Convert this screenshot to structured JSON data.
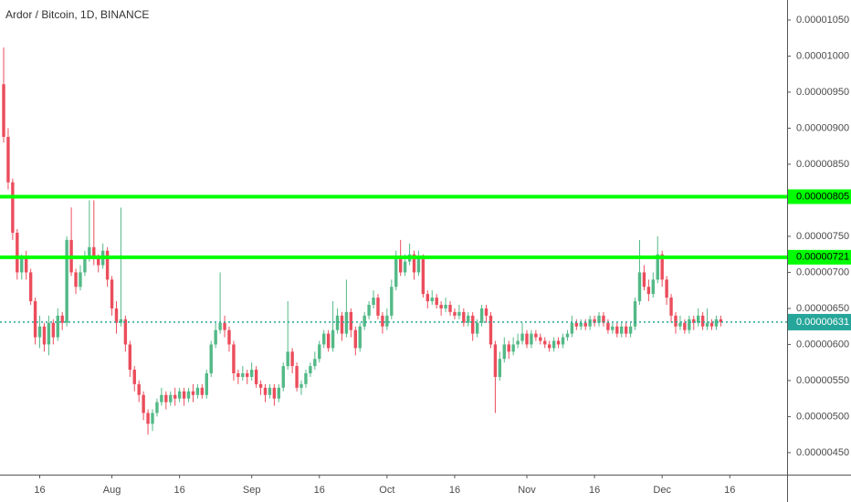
{
  "chart_data": {
    "type": "candlestick",
    "title": "Ardor / Bitcoin, 1D, BINANCE",
    "up_color": "#53b987",
    "down_color": "#eb4d5c",
    "xlim": [
      -0.81,
      173.7
    ],
    "ylim": [
      4.195e-06,
      1.0778e-05
    ],
    "xticks": [
      {
        "value": 8,
        "label": "16"
      },
      {
        "value": 24,
        "label": "Aug"
      },
      {
        "value": 39,
        "label": "16"
      },
      {
        "value": 55,
        "label": "Sep"
      },
      {
        "value": 70,
        "label": "16"
      },
      {
        "value": 85,
        "label": "Oct"
      },
      {
        "value": 100,
        "label": "16"
      },
      {
        "value": 116,
        "label": "Nov"
      },
      {
        "value": 131,
        "label": "16"
      },
      {
        "value": 146,
        "label": "Dec"
      },
      {
        "value": 161,
        "label": "16"
      }
    ],
    "yticks": [
      {
        "value": 1.05e-05,
        "label": "0.00001050"
      },
      {
        "value": 1e-05,
        "label": "0.00001000"
      },
      {
        "value": 9.5e-06,
        "label": "0.00000950"
      },
      {
        "value": 9e-06,
        "label": "0.00000900"
      },
      {
        "value": 8.5e-06,
        "label": "0.00000850"
      },
      {
        "value": 7.5e-06,
        "label": "0.00000750"
      },
      {
        "value": 7e-06,
        "label": "0.00000700"
      },
      {
        "value": 6.5e-06,
        "label": "0.00000650"
      },
      {
        "value": 6e-06,
        "label": "0.00000600"
      },
      {
        "value": 5.5e-06,
        "label": "0.00000550"
      },
      {
        "value": 5e-06,
        "label": "0.00000500"
      },
      {
        "value": 4.5e-06,
        "label": "0.00000450"
      }
    ],
    "hlines": [
      {
        "value": 8.05e-06,
        "label": "0.00000805",
        "color": "#00ff00"
      },
      {
        "value": 7.21e-06,
        "label": "0.00000721",
        "color": "#00ff00"
      }
    ],
    "last_price": {
      "value": 6.31e-06,
      "label": "0.00000631",
      "color": "#26a69a"
    },
    "open": [
      9.61e-06,
      8.88e-06,
      8.25e-06,
      7.55e-06,
      7e-06,
      7.2e-06,
      7e-06,
      6.6e-06,
      6.1e-06,
      6.25e-06,
      6e-06,
      6.3e-06,
      6.1e-06,
      6.4e-06,
      6.3e-06,
      7.45e-06,
      7e-06,
      6.8e-06,
      7e-06,
      7.2e-06,
      7.35e-06,
      7.2e-06,
      7.1e-06,
      7.3e-06,
      6.9e-06,
      6.5e-06,
      6.3e-06,
      6.35e-06,
      6e-06,
      5.65e-06,
      5.45e-06,
      5.3e-06,
      5.05e-06,
      4.9e-06,
      5.05e-06,
      5.2e-06,
      5.3e-06,
      5.2e-06,
      5.3e-06,
      5.25e-06,
      5.35e-06,
      5.25e-06,
      5.35e-06,
      5.3e-06,
      5.4e-06,
      5.3e-06,
      5.6e-06,
      6e-06,
      6.2e-06,
      6.3e-06,
      6.2e-06,
      6e-06,
      5.6e-06,
      5.55e-06,
      5.6e-06,
      5.55e-06,
      5.65e-06,
      5.45e-06,
      5.4e-06,
      5.3e-06,
      5.4e-06,
      5.25e-06,
      5.4e-06,
      5.7e-06,
      5.9e-06,
      5.7e-06,
      5.4e-06,
      5.45e-06,
      5.6e-06,
      5.7e-06,
      5.8e-06,
      6e-06,
      6.15e-06,
      5.95e-06,
      6.2e-06,
      6.4e-06,
      6.15e-06,
      6.45e-06,
      6.2e-06,
      5.95e-06,
      6.25e-06,
      6.4e-06,
      6.55e-06,
      6.65e-06,
      6.4e-06,
      6.25e-06,
      6.4e-06,
      6.8e-06,
      7.2e-06,
      7e-06,
      7.15e-06,
      7.25e-06,
      7e-06,
      7.2e-06,
      6.7e-06,
      6.6e-06,
      6.65e-06,
      6.55e-06,
      6.5e-06,
      6.55e-06,
      6.45e-06,
      6.4e-06,
      6.45e-06,
      6.3e-06,
      6.4e-06,
      6.15e-06,
      6.3e-06,
      6.5e-06,
      6.4e-06,
      6e-06,
      5.55e-06,
      5.8e-06,
      6e-06,
      5.9e-06,
      6e-06,
      6.05e-06,
      6.15e-06,
      6e-06,
      6.15e-06,
      6.1e-06,
      6.05e-06,
      6e-06,
      5.95e-06,
      6.05e-06,
      6e-06,
      6.1e-06,
      6.15e-06,
      6.3e-06,
      6.25e-06,
      6.3e-06,
      6.25e-06,
      6.35e-06,
      6.3e-06,
      6.4e-06,
      6.3e-06,
      6.2e-06,
      6.25e-06,
      6.15e-06,
      6.25e-06,
      6.15e-06,
      6.25e-06,
      6.6e-06,
      7e-06,
      6.8e-06,
      6.7e-06,
      6.9e-06,
      7.25e-06,
      6.9e-06,
      6.65e-06,
      6.4e-06,
      6.25e-06,
      6.3e-06,
      6.2e-06,
      6.35e-06,
      6.3e-06,
      6.4e-06,
      6.25e-06,
      6.3e-06,
      6.25e-06,
      6.35e-06
    ],
    "close": [
      8.88e-06,
      8.25e-06,
      7.55e-06,
      7e-06,
      7.2e-06,
      7e-06,
      6.6e-06,
      6.1e-06,
      6.25e-06,
      6e-06,
      6.3e-06,
      6.1e-06,
      6.4e-06,
      6.3e-06,
      7.45e-06,
      7e-06,
      6.8e-06,
      7e-06,
      7.2e-06,
      7.35e-06,
      7.2e-06,
      7.1e-06,
      7.3e-06,
      6.9e-06,
      6.5e-06,
      6.3e-06,
      6.35e-06,
      6e-06,
      5.65e-06,
      5.45e-06,
      5.3e-06,
      5.05e-06,
      4.9e-06,
      5.05e-06,
      5.2e-06,
      5.3e-06,
      5.2e-06,
      5.3e-06,
      5.25e-06,
      5.35e-06,
      5.25e-06,
      5.35e-06,
      5.3e-06,
      5.4e-06,
      5.3e-06,
      5.6e-06,
      6e-06,
      6.2e-06,
      6.3e-06,
      6.2e-06,
      6e-06,
      5.6e-06,
      5.55e-06,
      5.6e-06,
      5.55e-06,
      5.65e-06,
      5.45e-06,
      5.4e-06,
      5.3e-06,
      5.4e-06,
      5.25e-06,
      5.4e-06,
      5.7e-06,
      5.9e-06,
      5.7e-06,
      5.4e-06,
      5.45e-06,
      5.6e-06,
      5.7e-06,
      5.8e-06,
      6e-06,
      6.15e-06,
      5.95e-06,
      6.2e-06,
      6.4e-06,
      6.15e-06,
      6.45e-06,
      6.2e-06,
      5.95e-06,
      6.25e-06,
      6.4e-06,
      6.55e-06,
      6.65e-06,
      6.4e-06,
      6.25e-06,
      6.4e-06,
      6.8e-06,
      7.2e-06,
      7e-06,
      7.15e-06,
      7.25e-06,
      7e-06,
      7.2e-06,
      6.7e-06,
      6.6e-06,
      6.65e-06,
      6.55e-06,
      6.5e-06,
      6.55e-06,
      6.45e-06,
      6.4e-06,
      6.45e-06,
      6.3e-06,
      6.4e-06,
      6.15e-06,
      6.3e-06,
      6.5e-06,
      6.4e-06,
      6e-06,
      5.55e-06,
      5.8e-06,
      6e-06,
      5.9e-06,
      6e-06,
      6.05e-06,
      6.15e-06,
      6e-06,
      6.15e-06,
      6.1e-06,
      6.05e-06,
      6e-06,
      5.95e-06,
      6.05e-06,
      6e-06,
      6.1e-06,
      6.15e-06,
      6.3e-06,
      6.25e-06,
      6.3e-06,
      6.25e-06,
      6.35e-06,
      6.3e-06,
      6.4e-06,
      6.3e-06,
      6.2e-06,
      6.25e-06,
      6.15e-06,
      6.25e-06,
      6.15e-06,
      6.25e-06,
      6.6e-06,
      7e-06,
      6.8e-06,
      6.7e-06,
      6.9e-06,
      7.25e-06,
      6.9e-06,
      6.65e-06,
      6.4e-06,
      6.25e-06,
      6.3e-06,
      6.2e-06,
      6.35e-06,
      6.3e-06,
      6.4e-06,
      6.25e-06,
      6.3e-06,
      6.25e-06,
      6.35e-06,
      6.31e-06
    ],
    "high": [
      1.012e-05,
      9e-06,
      8.3e-06,
      7.6e-06,
      7.25e-06,
      7.3e-06,
      7.05e-06,
      6.65e-06,
      6.4e-06,
      6.3e-06,
      6.4e-06,
      6.35e-06,
      6.5e-06,
      6.45e-06,
      7.5e-06,
      7.9e-06,
      7.05e-06,
      7.1e-06,
      7.3e-06,
      8e-06,
      8e-06,
      7.25e-06,
      7.4e-06,
      7.35e-06,
      6.95e-06,
      6.6e-06,
      7.9e-06,
      6.4e-06,
      6.05e-06,
      5.7e-06,
      5.5e-06,
      5.35e-06,
      5.1e-06,
      5.1e-06,
      5.25e-06,
      5.4e-06,
      5.35e-06,
      5.35e-06,
      5.4e-06,
      5.4e-06,
      5.4e-06,
      5.4e-06,
      5.45e-06,
      5.45e-06,
      5.45e-06,
      5.65e-06,
      6.05e-06,
      6.3e-06,
      7e-06,
      6.4e-06,
      6.25e-06,
      6.05e-06,
      5.65e-06,
      5.7e-06,
      5.65e-06,
      5.75e-06,
      5.7e-06,
      5.5e-06,
      5.45e-06,
      5.45e-06,
      5.45e-06,
      5.45e-06,
      5.75e-06,
      6.6e-06,
      5.95e-06,
      5.75e-06,
      5.5e-06,
      5.65e-06,
      5.75e-06,
      5.9e-06,
      6.05e-06,
      6.2e-06,
      6.2e-06,
      6.6e-06,
      6.5e-06,
      6.45e-06,
      6.9e-06,
      6.5e-06,
      6.25e-06,
      6.3e-06,
      6.45e-06,
      6.6e-06,
      6.75e-06,
      6.7e-06,
      6.45e-06,
      6.5e-06,
      6.9e-06,
      7.3e-06,
      7.45e-06,
      7.25e-06,
      7.4e-06,
      7.3e-06,
      7.3e-06,
      7.25e-06,
      6.75e-06,
      6.75e-06,
      6.7e-06,
      6.6e-06,
      6.65e-06,
      6.6e-06,
      6.5e-06,
      6.55e-06,
      6.5e-06,
      6.45e-06,
      6.45e-06,
      6.35e-06,
      6.55e-06,
      6.55e-06,
      6.45e-06,
      6.05e-06,
      5.9e-06,
      6.1e-06,
      6.05e-06,
      6.1e-06,
      6.15e-06,
      6.3e-06,
      6.2e-06,
      6.2e-06,
      6.2e-06,
      6.15e-06,
      6.1e-06,
      6.05e-06,
      6.1e-06,
      6.1e-06,
      6.15e-06,
      6.2e-06,
      6.4e-06,
      6.35e-06,
      6.35e-06,
      6.35e-06,
      6.4e-06,
      6.4e-06,
      6.45e-06,
      6.45e-06,
      6.35e-06,
      6.3e-06,
      6.3e-06,
      6.3e-06,
      6.3e-06,
      6.3e-06,
      6.65e-06,
      7.45e-06,
      7.1e-06,
      6.9e-06,
      7e-06,
      7.5e-06,
      7.3e-06,
      6.95e-06,
      6.7e-06,
      6.45e-06,
      6.4e-06,
      6.35e-06,
      6.4e-06,
      6.4e-06,
      6.5e-06,
      6.45e-06,
      6.5e-06,
      6.35e-06,
      6.4e-06,
      6.4e-06
    ],
    "low": [
      8.8e-06,
      8.15e-06,
      7.45e-06,
      6.9e-06,
      6.9e-06,
      6.9e-06,
      6.55e-06,
      6e-06,
      5.95e-06,
      5.9e-06,
      5.85e-06,
      6e-06,
      6.05e-06,
      6.2e-06,
      6.25e-06,
      6.95e-06,
      6.7e-06,
      6.75e-06,
      6.95e-06,
      7.15e-06,
      7.1e-06,
      7e-06,
      7.05e-06,
      6.8e-06,
      6.4e-06,
      6.15e-06,
      6.25e-06,
      5.9e-06,
      5.55e-06,
      5.35e-06,
      5.2e-06,
      4.95e-06,
      4.75e-06,
      4.8e-06,
      5e-06,
      5.15e-06,
      5.1e-06,
      5.15e-06,
      5.15e-06,
      5.2e-06,
      5.15e-06,
      5.2e-06,
      5.2e-06,
      5.25e-06,
      5.25e-06,
      5.25e-06,
      5.55e-06,
      5.95e-06,
      6.15e-06,
      6.1e-06,
      5.9e-06,
      5.5e-06,
      5.45e-06,
      5.5e-06,
      5.45e-06,
      5.5e-06,
      5.4e-06,
      5.3e-06,
      5.2e-06,
      5.25e-06,
      5.15e-06,
      5.2e-06,
      5.35e-06,
      5.65e-06,
      5.6e-06,
      5.35e-06,
      5.3e-06,
      5.4e-06,
      5.55e-06,
      5.65e-06,
      5.75e-06,
      5.95e-06,
      5.9e-06,
      5.9e-06,
      6.15e-06,
      6.05e-06,
      6.1e-06,
      6.1e-06,
      5.85e-06,
      5.9e-06,
      6.2e-06,
      6.35e-06,
      6.5e-06,
      6.35e-06,
      6.15e-06,
      6.2e-06,
      6.35e-06,
      6.75e-06,
      6.95e-06,
      6.95e-06,
      7.1e-06,
      6.9e-06,
      6.95e-06,
      6.65e-06,
      6.5e-06,
      6.55e-06,
      6.5e-06,
      6.4e-06,
      6.45e-06,
      6.4e-06,
      6.35e-06,
      6.35e-06,
      6.25e-06,
      6.25e-06,
      6.05e-06,
      6.1e-06,
      6.25e-06,
      6.3e-06,
      5.95e-06,
      5.05e-06,
      5.5e-06,
      5.75e-06,
      5.8e-06,
      5.85e-06,
      5.95e-06,
      6e-06,
      5.95e-06,
      5.95e-06,
      6.05e-06,
      6e-06,
      5.95e-06,
      5.9e-06,
      5.9e-06,
      5.95e-06,
      5.95e-06,
      6.05e-06,
      6.1e-06,
      6.2e-06,
      6.2e-06,
      6.2e-06,
      6.2e-06,
      6.25e-06,
      6.25e-06,
      6.25e-06,
      6.15e-06,
      6.15e-06,
      6.1e-06,
      6.1e-06,
      6.1e-06,
      6.1e-06,
      6.2e-06,
      6.55e-06,
      6.75e-06,
      6.6e-06,
      6.65e-06,
      6.85e-06,
      6.8e-06,
      6.55e-06,
      6.3e-06,
      6.15e-06,
      6.2e-06,
      6.15e-06,
      6.15e-06,
      6.2e-06,
      6.25e-06,
      6.2e-06,
      6.2e-06,
      6.2e-06,
      6.2e-06,
      6.25e-06
    ]
  }
}
